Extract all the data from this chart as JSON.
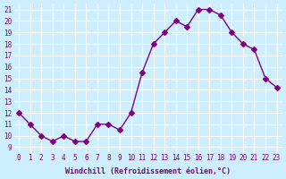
{
  "x": [
    0,
    1,
    2,
    3,
    4,
    5,
    6,
    7,
    8,
    9,
    10,
    11,
    12,
    13,
    14,
    15,
    16,
    17,
    18,
    19,
    20,
    21,
    22,
    23
  ],
  "y": [
    12,
    11,
    10,
    9.5,
    10,
    9.5,
    9.5,
    11,
    11,
    10.5,
    12,
    15.5,
    18,
    19,
    20,
    19.5,
    21,
    21,
    20.5,
    19,
    18,
    17.5,
    15,
    14.2
  ],
  "line_color": "#800080",
  "marker": "D",
  "marker_size": 3,
  "bg_color": "#cceeff",
  "grid_color": "#ffffff",
  "xlabel": "Windchill (Refroidissement éolien,°C)",
  "xlabel_color": "#800080",
  "yticks": [
    9,
    10,
    11,
    12,
    13,
    14,
    15,
    16,
    17,
    18,
    19,
    20,
    21
  ],
  "xticks": [
    0,
    1,
    2,
    3,
    4,
    5,
    6,
    7,
    8,
    9,
    10,
    11,
    12,
    13,
    14,
    15,
    16,
    17,
    18,
    19,
    20,
    21,
    22,
    23
  ],
  "ylim": [
    8.5,
    21.5
  ],
  "xlim": [
    -0.5,
    23.5
  ]
}
